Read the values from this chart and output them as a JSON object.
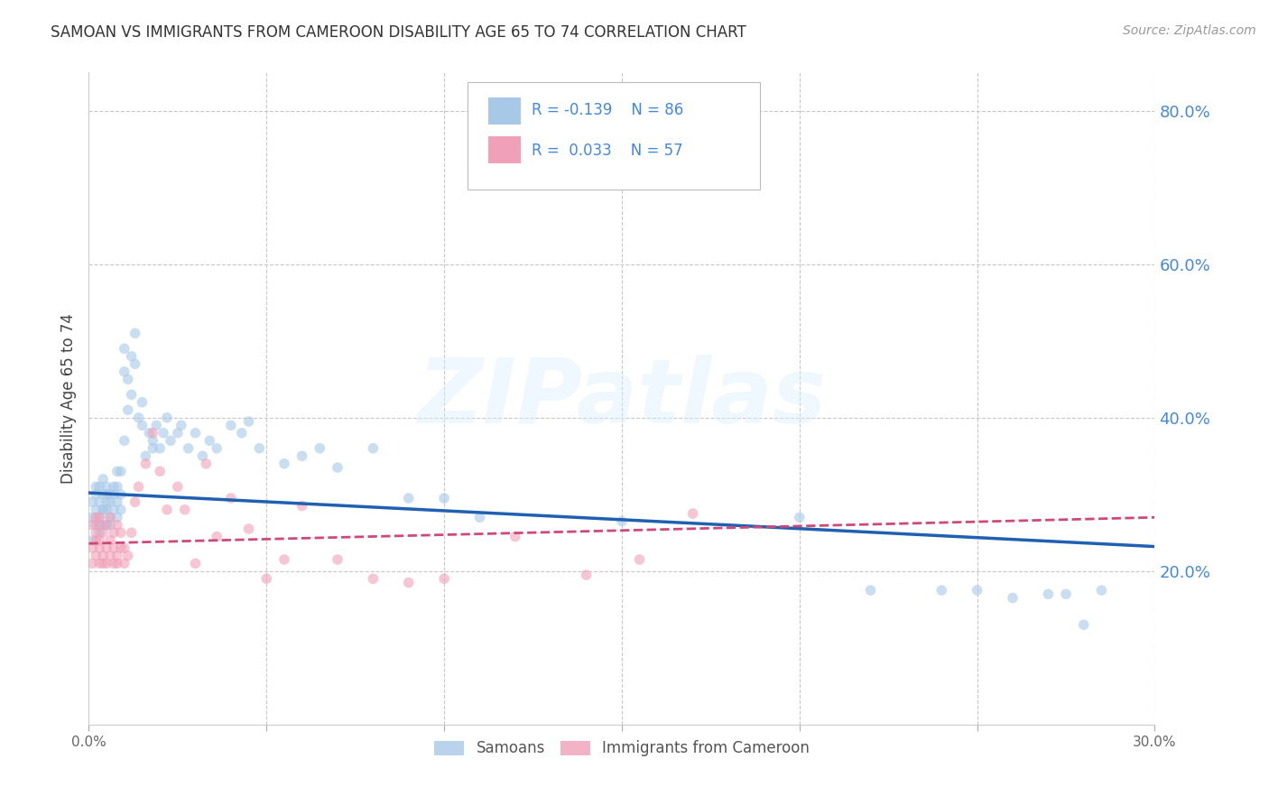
{
  "title": "SAMOAN VS IMMIGRANTS FROM CAMEROON DISABILITY AGE 65 TO 74 CORRELATION CHART",
  "source": "Source: ZipAtlas.com",
  "ylabel": "Disability Age 65 to 74",
  "xlim": [
    0.0,
    0.3
  ],
  "ylim": [
    0.0,
    0.85
  ],
  "yticks": [
    0.2,
    0.4,
    0.6,
    0.8
  ],
  "xticks": [
    0.0,
    0.05,
    0.1,
    0.15,
    0.2,
    0.25,
    0.3
  ],
  "xtick_labels": [
    "0.0%",
    "",
    "",
    "",
    "",
    "",
    "30.0%"
  ],
  "ytick_labels": [
    "20.0%",
    "40.0%",
    "60.0%",
    "80.0%"
  ],
  "background_color": "#ffffff",
  "grid_color": "#c8c8c8",
  "watermark_text": "ZIPatlas",
  "legend_R1": "R = -0.139",
  "legend_N1": "N = 86",
  "legend_R2": "R =  0.033",
  "legend_N2": "N = 57",
  "legend_label1": "Samoans",
  "legend_label2": "Immigrants from Cameroon",
  "blue_color": "#a8c8e8",
  "blue_line_color": "#2060b0",
  "pink_color": "#f0a0b8",
  "pink_line_color": "#d04878",
  "text_blue": "#4488dd",
  "dot_size": 70,
  "dot_alpha": 0.6,
  "samoans_x": [
    0.001,
    0.001,
    0.001,
    0.002,
    0.002,
    0.002,
    0.002,
    0.003,
    0.003,
    0.003,
    0.003,
    0.003,
    0.004,
    0.004,
    0.004,
    0.004,
    0.004,
    0.005,
    0.005,
    0.005,
    0.005,
    0.005,
    0.006,
    0.006,
    0.006,
    0.006,
    0.007,
    0.007,
    0.007,
    0.008,
    0.008,
    0.008,
    0.008,
    0.009,
    0.009,
    0.009,
    0.01,
    0.01,
    0.01,
    0.011,
    0.011,
    0.012,
    0.012,
    0.013,
    0.013,
    0.014,
    0.015,
    0.015,
    0.016,
    0.017,
    0.018,
    0.018,
    0.019,
    0.02,
    0.021,
    0.022,
    0.023,
    0.025,
    0.026,
    0.028,
    0.03,
    0.032,
    0.034,
    0.036,
    0.04,
    0.043,
    0.045,
    0.048,
    0.055,
    0.06,
    0.065,
    0.07,
    0.08,
    0.09,
    0.1,
    0.11,
    0.15,
    0.2,
    0.22,
    0.24,
    0.25,
    0.26,
    0.27,
    0.275,
    0.28,
    0.285
  ],
  "samoans_y": [
    0.27,
    0.29,
    0.24,
    0.26,
    0.3,
    0.28,
    0.31,
    0.27,
    0.25,
    0.29,
    0.31,
    0.26,
    0.28,
    0.3,
    0.26,
    0.28,
    0.32,
    0.26,
    0.29,
    0.28,
    0.3,
    0.31,
    0.27,
    0.29,
    0.3,
    0.26,
    0.28,
    0.3,
    0.31,
    0.27,
    0.29,
    0.31,
    0.33,
    0.28,
    0.3,
    0.33,
    0.46,
    0.49,
    0.37,
    0.41,
    0.45,
    0.48,
    0.43,
    0.47,
    0.51,
    0.4,
    0.39,
    0.42,
    0.35,
    0.38,
    0.36,
    0.37,
    0.39,
    0.36,
    0.38,
    0.4,
    0.37,
    0.38,
    0.39,
    0.36,
    0.38,
    0.35,
    0.37,
    0.36,
    0.39,
    0.38,
    0.395,
    0.36,
    0.34,
    0.35,
    0.36,
    0.335,
    0.36,
    0.295,
    0.295,
    0.27,
    0.265,
    0.27,
    0.175,
    0.175,
    0.175,
    0.165,
    0.17,
    0.17,
    0.13,
    0.175
  ],
  "cameroon_x": [
    0.001,
    0.001,
    0.001,
    0.002,
    0.002,
    0.002,
    0.002,
    0.003,
    0.003,
    0.003,
    0.003,
    0.003,
    0.004,
    0.004,
    0.004,
    0.005,
    0.005,
    0.005,
    0.006,
    0.006,
    0.006,
    0.007,
    0.007,
    0.007,
    0.008,
    0.008,
    0.008,
    0.009,
    0.009,
    0.01,
    0.01,
    0.011,
    0.012,
    0.013,
    0.014,
    0.016,
    0.018,
    0.02,
    0.022,
    0.025,
    0.027,
    0.03,
    0.033,
    0.036,
    0.04,
    0.045,
    0.05,
    0.055,
    0.06,
    0.07,
    0.08,
    0.09,
    0.1,
    0.12,
    0.14,
    0.155,
    0.17
  ],
  "cameroon_y": [
    0.23,
    0.26,
    0.21,
    0.24,
    0.27,
    0.22,
    0.25,
    0.23,
    0.26,
    0.21,
    0.24,
    0.27,
    0.22,
    0.25,
    0.21,
    0.23,
    0.26,
    0.21,
    0.24,
    0.22,
    0.27,
    0.25,
    0.21,
    0.23,
    0.22,
    0.26,
    0.21,
    0.23,
    0.25,
    0.23,
    0.21,
    0.22,
    0.25,
    0.29,
    0.31,
    0.34,
    0.38,
    0.33,
    0.28,
    0.31,
    0.28,
    0.21,
    0.34,
    0.245,
    0.295,
    0.255,
    0.19,
    0.215,
    0.285,
    0.215,
    0.19,
    0.185,
    0.19,
    0.245,
    0.195,
    0.215,
    0.275
  ],
  "blue_trendline_x": [
    0.0,
    0.3
  ],
  "blue_trendline_y_start": 0.302,
  "blue_trendline_y_end": 0.232,
  "pink_trendline_x": [
    0.0,
    0.3
  ],
  "pink_trendline_y_start": 0.236,
  "pink_trendline_y_end": 0.27
}
